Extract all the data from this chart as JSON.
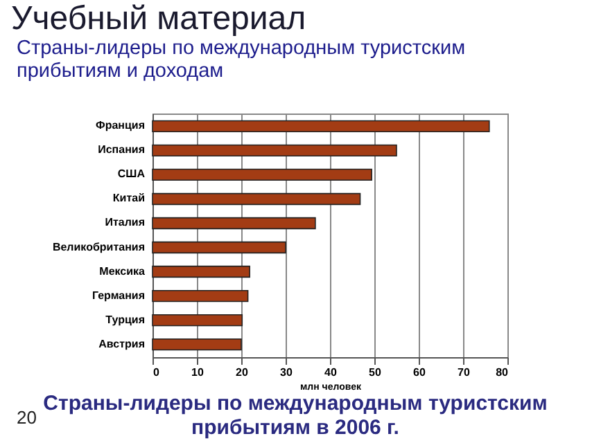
{
  "chart_data": {
    "type": "bar",
    "orientation": "horizontal",
    "title": "Учебный материал",
    "subtitle": "Страны-лидеры по международным туристским\nприбытиям и доходам",
    "categories": [
      "Франция",
      "Испания",
      "США",
      "Китай",
      "Италия",
      "Великобритания",
      "Мексика",
      "Германия",
      "Турция",
      "Австрия"
    ],
    "values": [
      75.9,
      55.0,
      49.4,
      46.8,
      36.7,
      30.0,
      21.9,
      21.5,
      20.2,
      20.0
    ],
    "color": "#a33c14",
    "xlabel": "млн человек",
    "xlim": [
      0,
      80
    ],
    "xticks": [
      0,
      10,
      20,
      30,
      40,
      50,
      60,
      70,
      80
    ],
    "grid": "x",
    "annotations": [
      "Страны-лидеры по международным туристским\nприбытиям в 2006 г.",
      "20"
    ]
  }
}
